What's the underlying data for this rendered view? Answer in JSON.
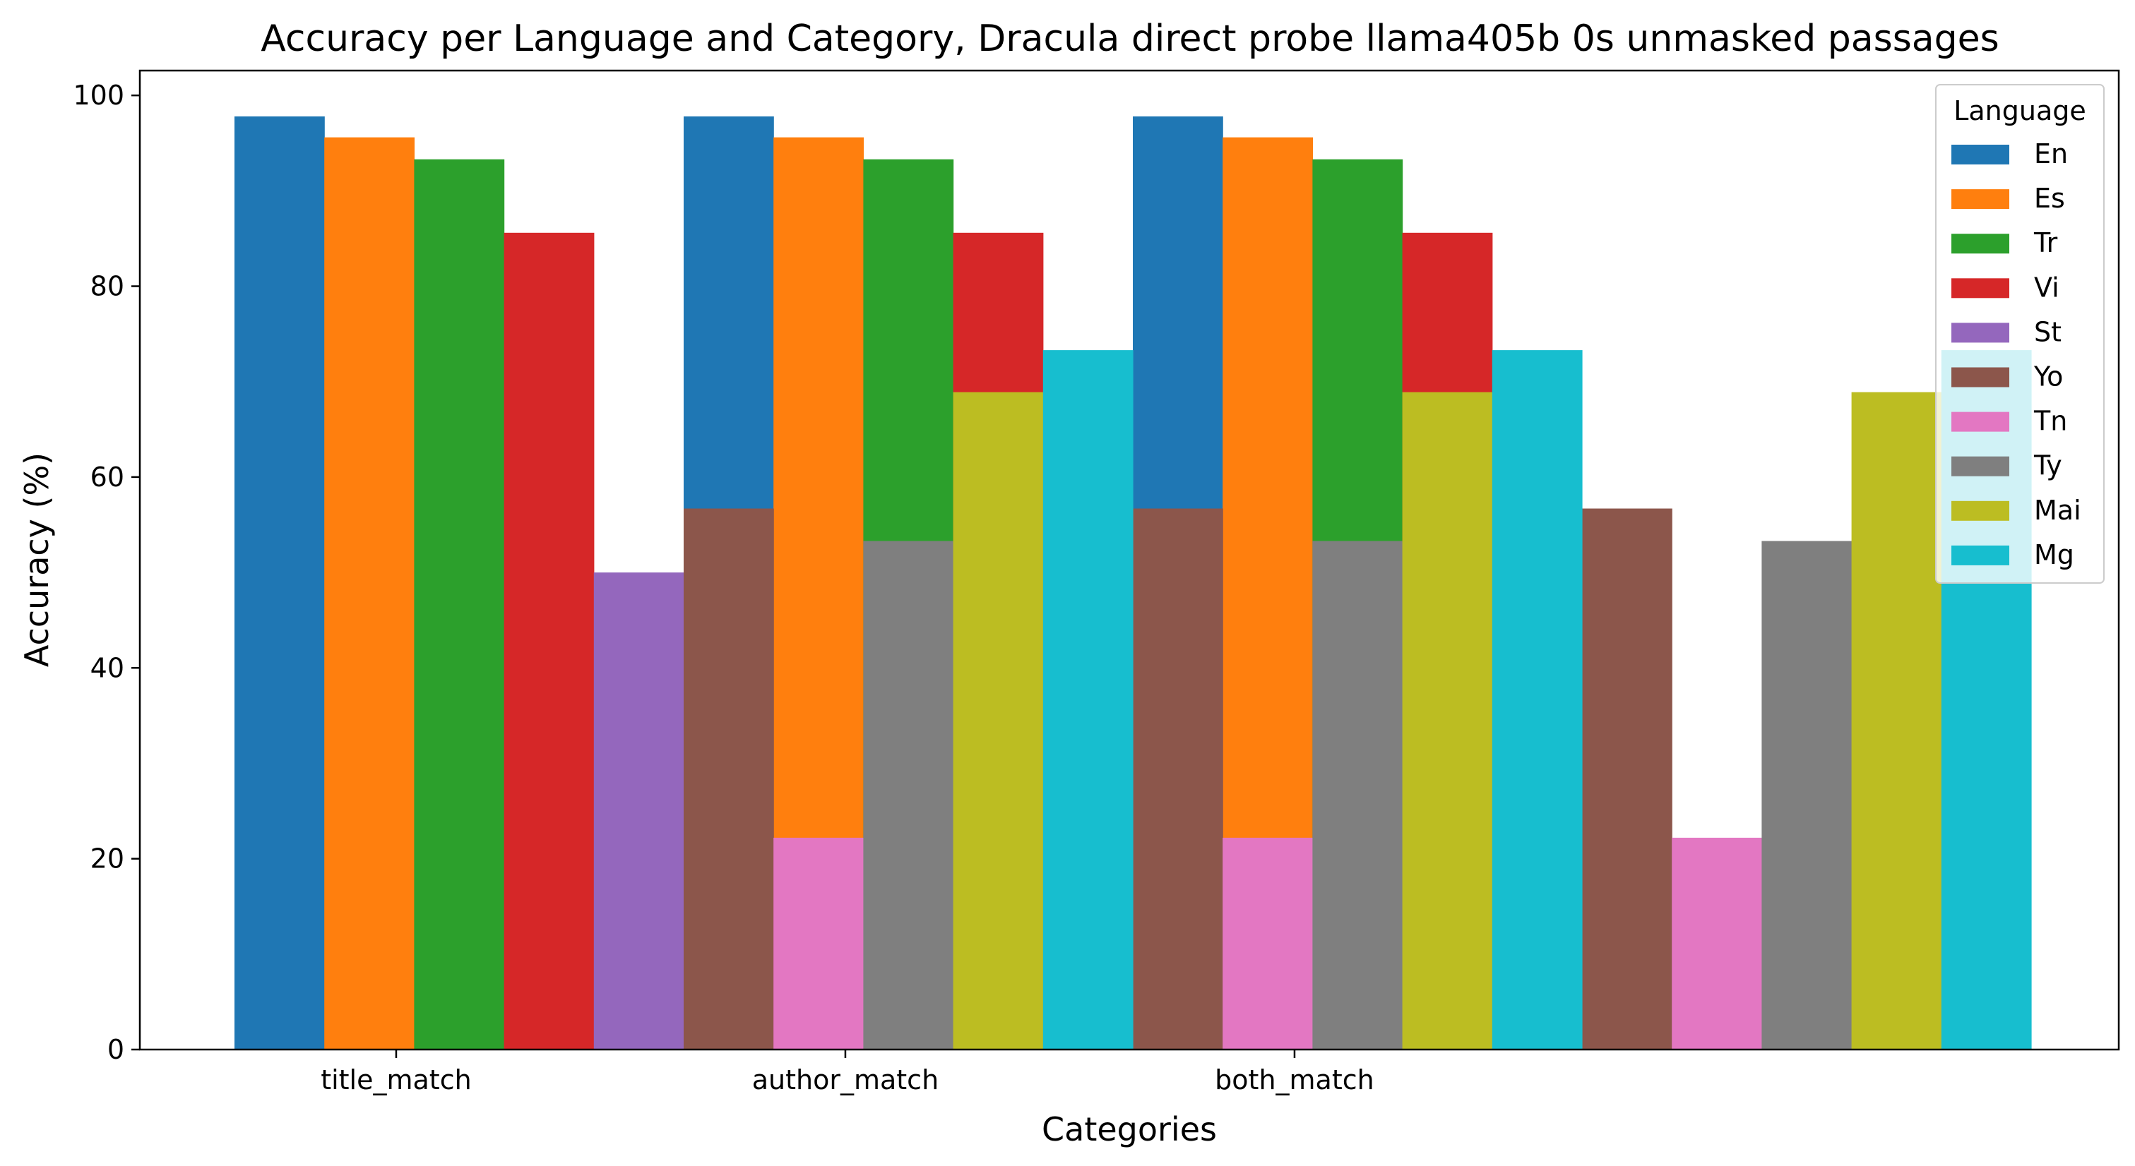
{
  "chart_data": {
    "type": "bar",
    "title": "Accuracy per Language and Category, Dracula direct probe llama405b 0s unmasked passages",
    "xlabel": "Categories",
    "ylabel": "Accuracy (%)",
    "ylim": [
      0,
      102.6
    ],
    "yticks": [
      "0",
      "20",
      "40",
      "60",
      "80",
      "100"
    ],
    "categories": [
      "title_match",
      "author_match",
      "both_match"
    ],
    "legend": {
      "title": "Language",
      "placement": "top-right"
    },
    "grid": false,
    "series": [
      {
        "name": "En",
        "color": "#1f77b4",
        "values": [
          97.8,
          97.8,
          97.8
        ]
      },
      {
        "name": "Es",
        "color": "#ff7f0e",
        "values": [
          95.6,
          95.6,
          95.6
        ]
      },
      {
        "name": "Tr",
        "color": "#2ca02c",
        "values": [
          93.3,
          93.3,
          93.3
        ]
      },
      {
        "name": "Vi",
        "color": "#d62728",
        "values": [
          85.6,
          85.6,
          85.6
        ]
      },
      {
        "name": "St",
        "color": "#9467bd",
        "values": [
          50.0,
          50.0,
          50.0
        ]
      },
      {
        "name": "Yo",
        "color": "#8c564b",
        "values": [
          56.7,
          56.7,
          56.7
        ]
      },
      {
        "name": "Tn",
        "color": "#e377c2",
        "values": [
          22.2,
          22.2,
          22.2
        ]
      },
      {
        "name": "Ty",
        "color": "#7f7f7f",
        "values": [
          53.3,
          53.3,
          53.3
        ]
      },
      {
        "name": "Mai",
        "color": "#bcbd22",
        "values": [
          68.9,
          68.9,
          68.9
        ]
      },
      {
        "name": "Mg",
        "color": "#17becf",
        "values": [
          73.3,
          73.3,
          73.3
        ]
      }
    ]
  }
}
